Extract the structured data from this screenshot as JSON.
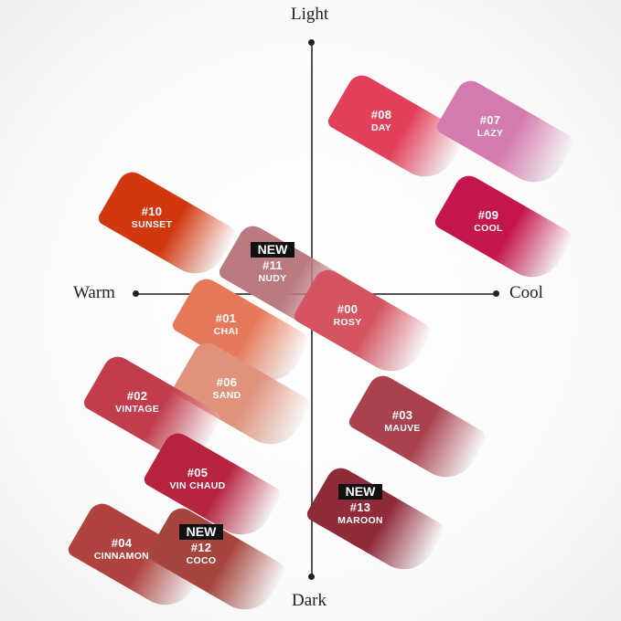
{
  "axes": {
    "top": "Light",
    "bottom": "Dark",
    "left": "Warm",
    "right": "Cool"
  },
  "badge_label": "NEW",
  "shades": [
    {
      "number": "#08",
      "name": "DAY",
      "color": "#e2405a"
    },
    {
      "number": "#07",
      "name": "LAZY",
      "color": "#d57aae"
    },
    {
      "number": "#09",
      "name": "COOL",
      "color": "#c5164c"
    },
    {
      "number": "#10",
      "name": "SUNSET",
      "color": "#d23810"
    },
    {
      "number": "#11",
      "name": "NUDY",
      "color": "#b97a80",
      "new": true
    },
    {
      "number": "#00",
      "name": "ROSY",
      "color": "#d45461"
    },
    {
      "number": "#01",
      "name": "CHAI",
      "color": "#e5795a"
    },
    {
      "number": "#06",
      "name": "SAND",
      "color": "#e0927b"
    },
    {
      "number": "#02",
      "name": "VINTAGE",
      "color": "#c13c4d"
    },
    {
      "number": "#03",
      "name": "MAUVE",
      "color": "#a9414f"
    },
    {
      "number": "#05",
      "name": "VIN CHAUD",
      "color": "#b8233f"
    },
    {
      "number": "#13",
      "name": "MAROON",
      "color": "#8f2a39",
      "new": true
    },
    {
      "number": "#04",
      "name": "CINNAMON",
      "color": "#b0433f"
    },
    {
      "number": "#12",
      "name": "COCO",
      "color": "#a6453d",
      "new": true
    }
  ]
}
